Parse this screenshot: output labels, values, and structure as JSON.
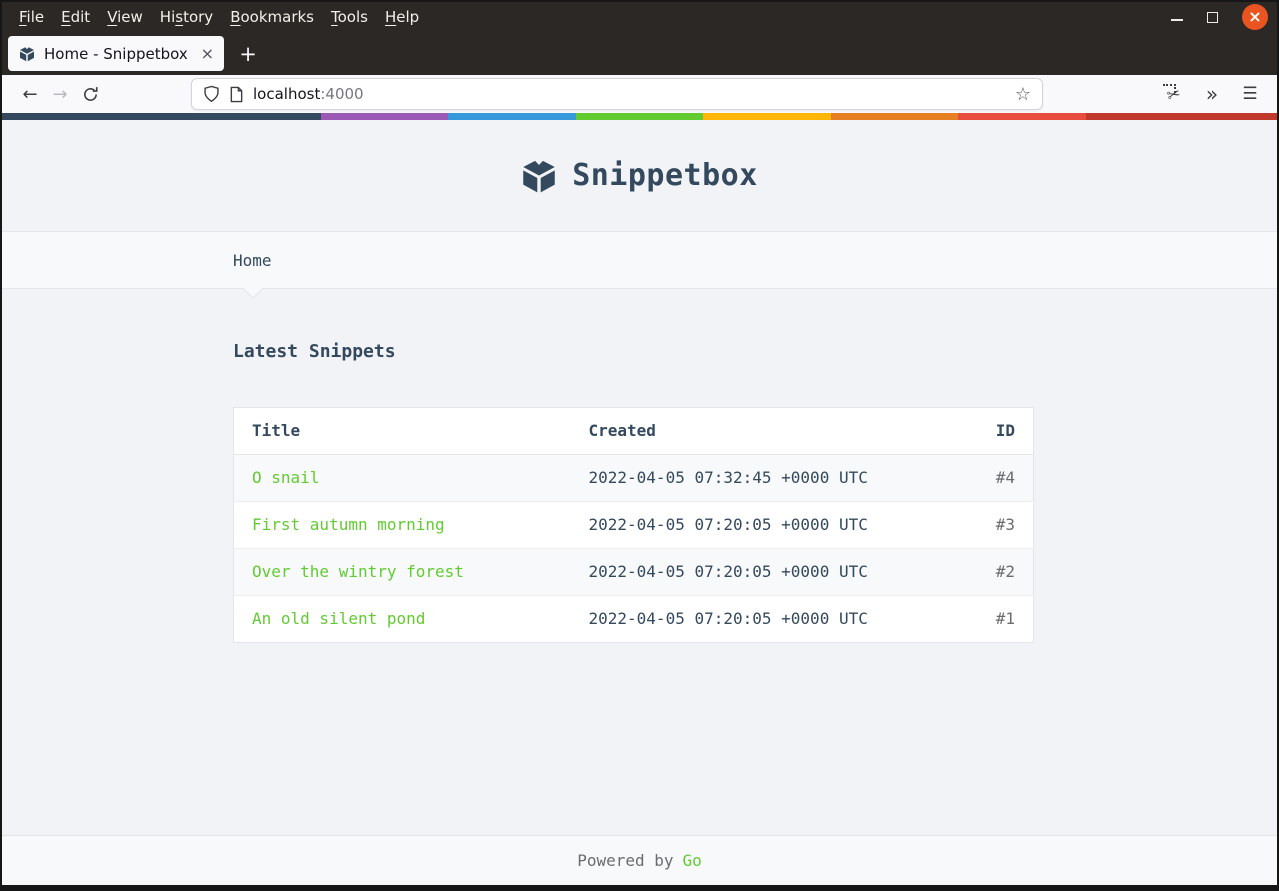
{
  "browser": {
    "menubar": {
      "items": [
        {
          "label": "File",
          "underline_index": 0
        },
        {
          "label": "Edit",
          "underline_index": 0
        },
        {
          "label": "View",
          "underline_index": 0
        },
        {
          "label": "History",
          "underline_index": 2
        },
        {
          "label": "Bookmarks",
          "underline_index": 0
        },
        {
          "label": "Tools",
          "underline_index": 0
        },
        {
          "label": "Help",
          "underline_index": 0
        }
      ]
    },
    "tab": {
      "title": "Home - Snippetbox"
    },
    "url": {
      "host": "localhost",
      "port": ":4000"
    }
  },
  "icons": {
    "close_x": "×",
    "plus": "+",
    "back_arrow": "←",
    "forward_arrow": "→",
    "star": "☆",
    "scissors": "✂",
    "overflow_chevrons": "»",
    "hamburger_menu": "☰"
  },
  "stripe": {
    "segments": [
      {
        "color": "#34495E",
        "width_pct": 25
      },
      {
        "color": "#9B59B6",
        "width_pct": 10
      },
      {
        "color": "#3498DB",
        "width_pct": 10
      },
      {
        "color": "#62CB31",
        "width_pct": 10
      },
      {
        "color": "#FFB606",
        "width_pct": 10
      },
      {
        "color": "#E67E22",
        "width_pct": 10
      },
      {
        "color": "#E74C3C",
        "width_pct": 10
      },
      {
        "color": "#C0392B",
        "width_pct": 15
      }
    ]
  },
  "page": {
    "brand": "Snippetbox",
    "nav": {
      "home_label": "Home"
    },
    "heading": "Latest Snippets",
    "table": {
      "columns": [
        "Title",
        "Created",
        "ID"
      ],
      "rows": [
        {
          "title": "O snail",
          "created": "2022-04-05 07:32:45 +0000 UTC",
          "id": "#4"
        },
        {
          "title": "First autumn morning",
          "created": "2022-04-05 07:20:05 +0000 UTC",
          "id": "#3"
        },
        {
          "title": "Over the wintry forest",
          "created": "2022-04-05 07:20:05 +0000 UTC",
          "id": "#2"
        },
        {
          "title": "An old silent pond",
          "created": "2022-04-05 07:20:05 +0000 UTC",
          "id": "#1"
        }
      ]
    },
    "footer": {
      "text": "Powered by",
      "link_label": "Go"
    },
    "colors": {
      "navy": "#34495E",
      "green": "#62CB31",
      "muted": "#6A6C6F",
      "page_bg": "#F1F3F6",
      "panel_bg": "#F7F9FA",
      "border": "#E4E5E7",
      "chrome_dark": "#2b2826",
      "close_button": "#E95420"
    }
  }
}
